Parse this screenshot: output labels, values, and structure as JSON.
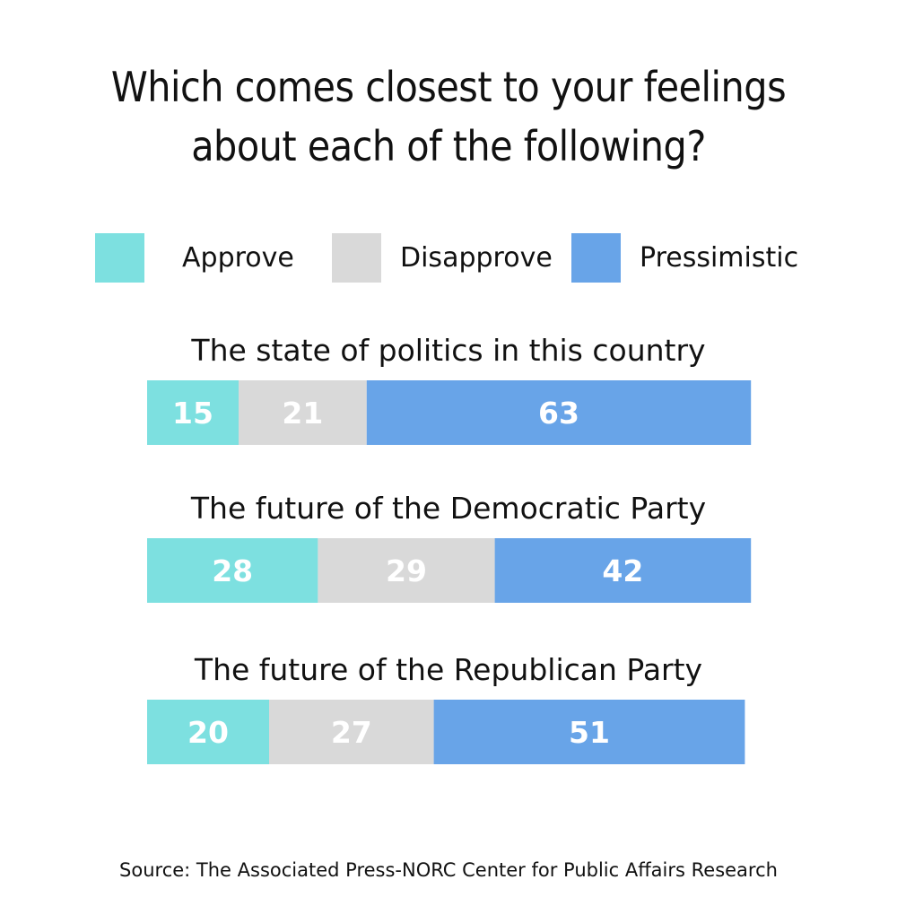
{
  "chart_data": {
    "type": "bar",
    "stacked": true,
    "orientation": "horizontal",
    "title": "Which comes closest to your feelings about each of the following?",
    "categories": [
      "The state of politics in this country",
      "The future of the Democratic Party",
      "The future of the Republican Party"
    ],
    "series": [
      {
        "name": "Approve",
        "color": "#7de0e0",
        "values": [
          15,
          28,
          20
        ]
      },
      {
        "name": "Disapprove",
        "color": "#d9d9d9",
        "values": [
          21,
          29,
          27
        ]
      },
      {
        "name": "Pressimistic",
        "color": "#68a4e8",
        "values": [
          63,
          42,
          51
        ]
      }
    ],
    "legend_position": "top",
    "value_label_color": "#ffffff",
    "source": "Source: The Associated Press-NORC Center for Public Affairs Research"
  }
}
